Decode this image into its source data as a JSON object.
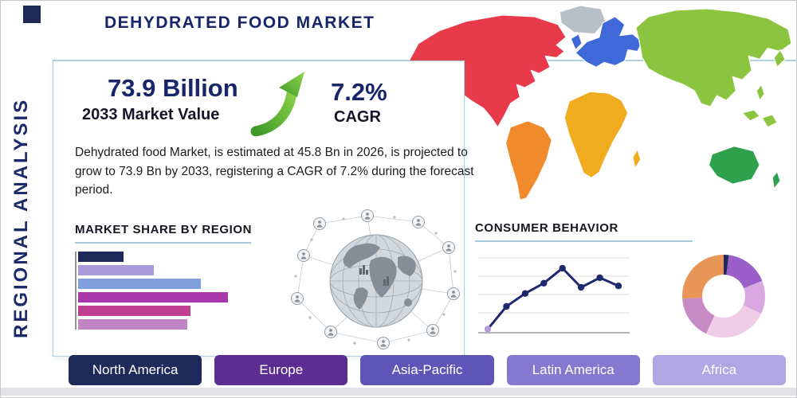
{
  "page": {
    "title": "DEHYDRATED FOOD MARKET",
    "side_label": "REGIONAL ANALYSIS"
  },
  "colors": {
    "brand_navy": "#17256b",
    "accent_rule": "#9fcbdc",
    "arrow_green": "#5cb332"
  },
  "stats": {
    "market_value": "73.9 Billion",
    "market_value_label": "2033 Market Value",
    "cagr_value": "7.2%",
    "cagr_label": "CAGR",
    "description": "Dehydrated food Market, is estimated at 45.8 Bn in 2026, is projected to grow to 73.9 Bn by 2033, registering a CAGR of 7.2% during the forecast period."
  },
  "sections": {
    "market_share_title": "MARKET SHARE BY REGION",
    "consumer_behavior_title": "CONSUMER BEHAVIOR"
  },
  "regions": [
    {
      "label": "North America",
      "color": "#1e2a5a"
    },
    {
      "label": "Europe",
      "color": "#5b2d91"
    },
    {
      "label": "Asia-Pacific",
      "color": "#5f55b8"
    },
    {
      "label": "Latin America",
      "color": "#8478cf"
    },
    {
      "label": "Africa",
      "color": "#b1a6e4"
    }
  ],
  "map": {
    "regions": [
      {
        "name": "north-america",
        "color": "#e83a4a"
      },
      {
        "name": "greenland",
        "color": "#b8bfc7"
      },
      {
        "name": "south-america",
        "color": "#f08a2a"
      },
      {
        "name": "europe",
        "color": "#3f68d8"
      },
      {
        "name": "africa",
        "color": "#f0ab1e"
      },
      {
        "name": "asia",
        "color": "#8bc53f"
      },
      {
        "name": "australia",
        "color": "#2fa14c"
      }
    ]
  },
  "chart_data": [
    {
      "type": "bar",
      "title": "MARKET SHARE BY REGION",
      "orientation": "horizontal",
      "categories": [
        "bar-1",
        "bar-2",
        "bar-3",
        "bar-4",
        "bar-5",
        "bar-6"
      ],
      "values": [
        30,
        50,
        81,
        99,
        74,
        72
      ],
      "colors": [
        "#1e2a5a",
        "#a89ad8",
        "#7f9edb",
        "#aa36ab",
        "#c03f92",
        "#c184c5"
      ],
      "xlabel": "",
      "ylabel": "",
      "note": "unlabeled horizontal bars, relative lengths on a 0-100 scale",
      "grid": false
    },
    {
      "type": "line",
      "title": "CONSUMER BEHAVIOR",
      "x": [
        1,
        2,
        3,
        4,
        5,
        6,
        7,
        8
      ],
      "values": [
        3,
        36,
        55,
        70,
        92,
        64,
        78,
        66
      ],
      "line_color": "#1e2a6e",
      "first_marker_color": "#b49bdb",
      "xlabel": "",
      "ylabel": "",
      "ylim": [
        0,
        100
      ],
      "grid": true,
      "note": "unlabeled trend line with round markers, values on a 0-100 scale"
    },
    {
      "type": "pie",
      "title": "Regional share donut",
      "donut": true,
      "values": [
        2,
        17,
        13,
        25,
        17,
        26
      ],
      "colors": [
        "#1e2a5a",
        "#9a5fc8",
        "#d9a8e0",
        "#f0cce9",
        "#c98bc5",
        "#ea9558"
      ],
      "note": "unlabeled donut, slice sizes in percent, clockwise from top"
    }
  ]
}
